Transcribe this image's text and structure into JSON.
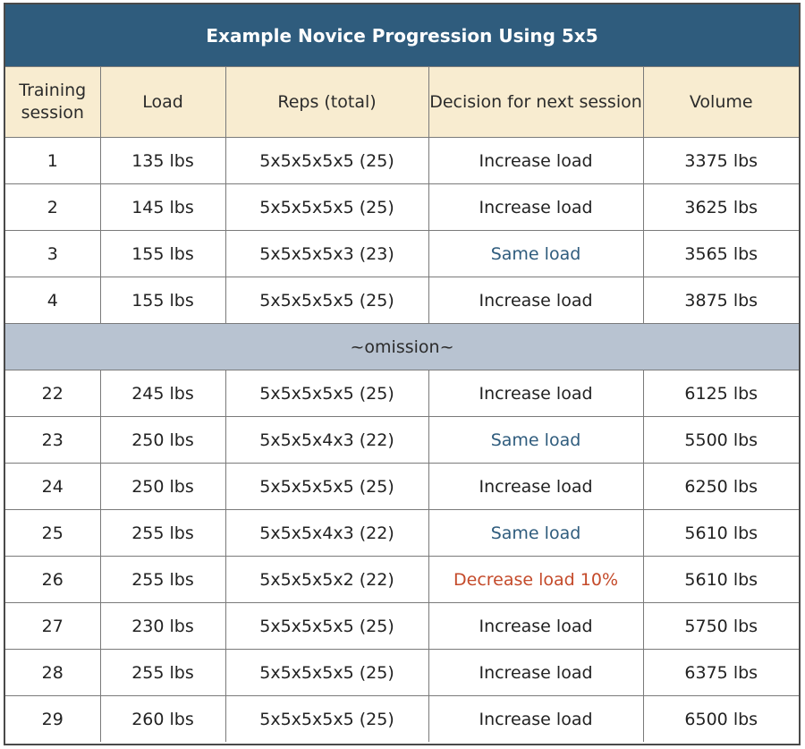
{
  "title": "Example Novice Progression Using 5x5",
  "columns": [
    "Training session",
    "Load",
    "Reps (total)",
    "Decision for next session",
    "Volume"
  ],
  "rows_top": [
    {
      "session": "1",
      "load": "135 lbs",
      "reps": "5x5x5x5x5 (25)",
      "decision": "Increase load",
      "type": "increase",
      "volume": "3375 lbs"
    },
    {
      "session": "2",
      "load": "145 lbs",
      "reps": "5x5x5x5x5 (25)",
      "decision": "Increase load",
      "type": "increase",
      "volume": "3625 lbs"
    },
    {
      "session": "3",
      "load": "155 lbs",
      "reps": "5x5x5x5x3 (23)",
      "decision": "Same load",
      "type": "same",
      "volume": "3565 lbs"
    },
    {
      "session": "4",
      "load": "155 lbs",
      "reps": "5x5x5x5x5 (25)",
      "decision": "Increase load",
      "type": "increase",
      "volume": "3875 lbs"
    }
  ],
  "omission_label": "~omission~",
  "rows_bottom": [
    {
      "session": "22",
      "load": "245 lbs",
      "reps": "5x5x5x5x5 (25)",
      "decision": "Increase load",
      "type": "increase",
      "volume": "6125 lbs"
    },
    {
      "session": "23",
      "load": "250 lbs",
      "reps": "5x5x5x4x3 (22)",
      "decision": "Same load",
      "type": "same",
      "volume": "5500 lbs"
    },
    {
      "session": "24",
      "load": "250 lbs",
      "reps": "5x5x5x5x5 (25)",
      "decision": "Increase load",
      "type": "increase",
      "volume": "6250 lbs"
    },
    {
      "session": "25",
      "load": "255 lbs",
      "reps": "5x5x5x4x3 (22)",
      "decision": "Same load",
      "type": "same",
      "volume": "5610 lbs"
    },
    {
      "session": "26",
      "load": "255 lbs",
      "reps": "5x5x5x5x2 (22)",
      "decision": "Decrease load 10%",
      "type": "decrease",
      "volume": "5610 lbs"
    },
    {
      "session": "27",
      "load": "230 lbs",
      "reps": "5x5x5x5x5 (25)",
      "decision": "Increase load",
      "type": "increase",
      "volume": "5750 lbs"
    },
    {
      "session": "28",
      "load": "255 lbs",
      "reps": "5x5x5x5x5 (25)",
      "decision": "Increase load",
      "type": "increase",
      "volume": "6375 lbs"
    },
    {
      "session": "29",
      "load": "260 lbs",
      "reps": "5x5x5x5x5 (25)",
      "decision": "Increase load",
      "type": "increase",
      "volume": "6500 lbs"
    }
  ],
  "colors": {
    "header_bar": "#2f5c7d",
    "column_header_bg": "#f8ecd0",
    "omission_bg": "#b8c3d1",
    "same_load": "#2f5c7d",
    "decrease_load": "#c44a2a"
  }
}
